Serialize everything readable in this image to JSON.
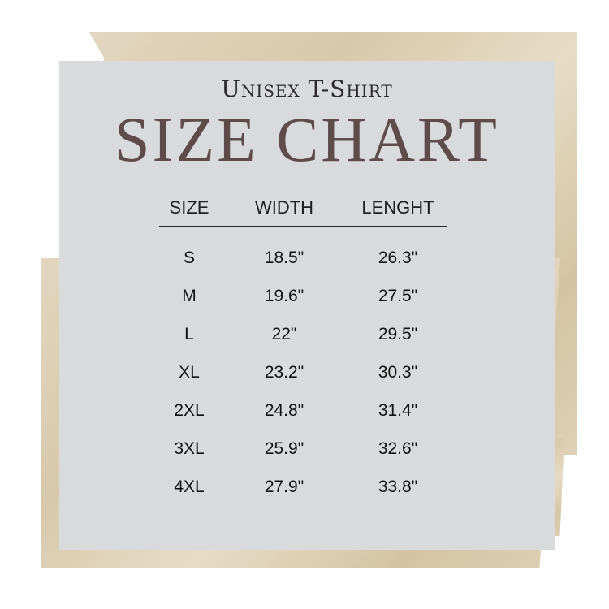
{
  "header": {
    "subtitle": "Unisex T-Shirt",
    "title": "SIZE CHART"
  },
  "table": {
    "columns": [
      "SIZE",
      "WIDTH",
      "LENGHT"
    ],
    "rows": [
      [
        "S",
        "18.5\"",
        "26.3\""
      ],
      [
        "M",
        "19.6\"",
        "27.5\""
      ],
      [
        "L",
        "22\"",
        "29.5\""
      ],
      [
        "XL",
        "23.2\"",
        "30.3\""
      ],
      [
        "2XL",
        "24.8\"",
        "31.4\""
      ],
      [
        "3XL",
        "25.9\"",
        "32.6\""
      ],
      [
        "4XL",
        "27.9\"",
        "33.8\""
      ]
    ]
  },
  "colors": {
    "title": "#5e4c4b",
    "card": "#d9dadb",
    "paper": "#dccfb3"
  }
}
